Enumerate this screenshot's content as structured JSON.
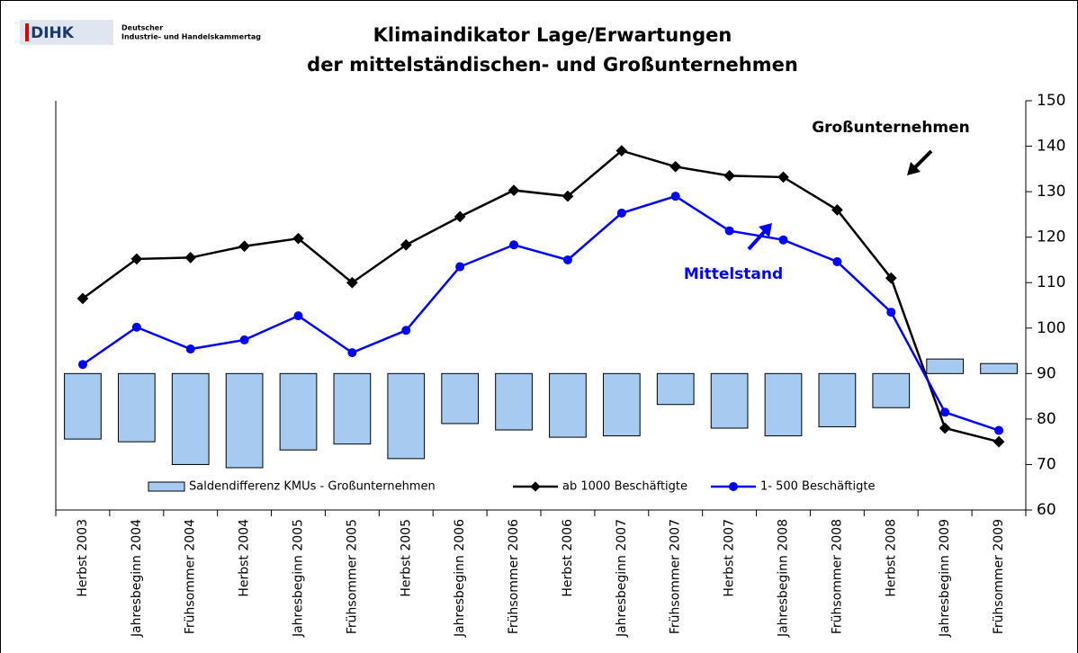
{
  "logo": {
    "mark": "DIHK",
    "line1": "Deutscher",
    "line2": "Industrie- und Handelskammertag"
  },
  "chart_data": {
    "type": "bar_line",
    "title": "Klimaindikator Lage/Erwartungen",
    "subtitle": "der mittelständischen- und Großunternehmen",
    "annotations": [
      "Großunternehmen",
      "Mittelstand"
    ],
    "categories": [
      "Herbst 2003",
      "Jahresbeginn 2004",
      "Frühsommer 2004",
      "Herbst 2004",
      "Jahresbeginn 2005",
      "Frühsommer 2005",
      "Herbst 2005",
      "Jahresbeginn 2006",
      "Frühsommer 2006",
      "Herbst 2006",
      "Jahresbeginn 2007",
      "Frühsommer 2007",
      "Herbst 2007",
      "Jahresbeginn 2008",
      "Frühsommer 2008",
      "Herbst 2008",
      "Jahresbeginn 2009",
      "Frühsommer 2009"
    ],
    "bar_baseline": 90,
    "series": [
      {
        "name": "Saldendifferenz KMUs - Großunternehmen",
        "kind": "bar",
        "color": "#a6caf0",
        "values": [
          75.6,
          75,
          70,
          69.3,
          73.2,
          74.5,
          71.3,
          79,
          77.6,
          76,
          76.3,
          83.2,
          78,
          76.3,
          78.3,
          82.5,
          93.2,
          92.2
        ]
      },
      {
        "name": "ab 1000 Beschäftigte",
        "kind": "line",
        "color": "#000000",
        "values": [
          106.5,
          115.2,
          115.5,
          118,
          119.7,
          110,
          118.3,
          124.5,
          130.3,
          129,
          139,
          135.5,
          133.5,
          133.2,
          126,
          111,
          78,
          75
        ]
      },
      {
        "name": "1- 500 Beschäftigte",
        "kind": "line",
        "color": "#0000ff",
        "values": [
          92,
          100.2,
          95.4,
          97.4,
          102.7,
          94.6,
          99.5,
          113.5,
          118.3,
          115,
          125.3,
          129,
          121.4,
          119.4,
          114.6,
          103.5,
          81.5,
          77.5
        ]
      }
    ],
    "ylim": [
      60,
      150
    ],
    "yticks": [
      60,
      70,
      80,
      90,
      100,
      110,
      120,
      130,
      140,
      150
    ],
    "axis_side": "right"
  }
}
